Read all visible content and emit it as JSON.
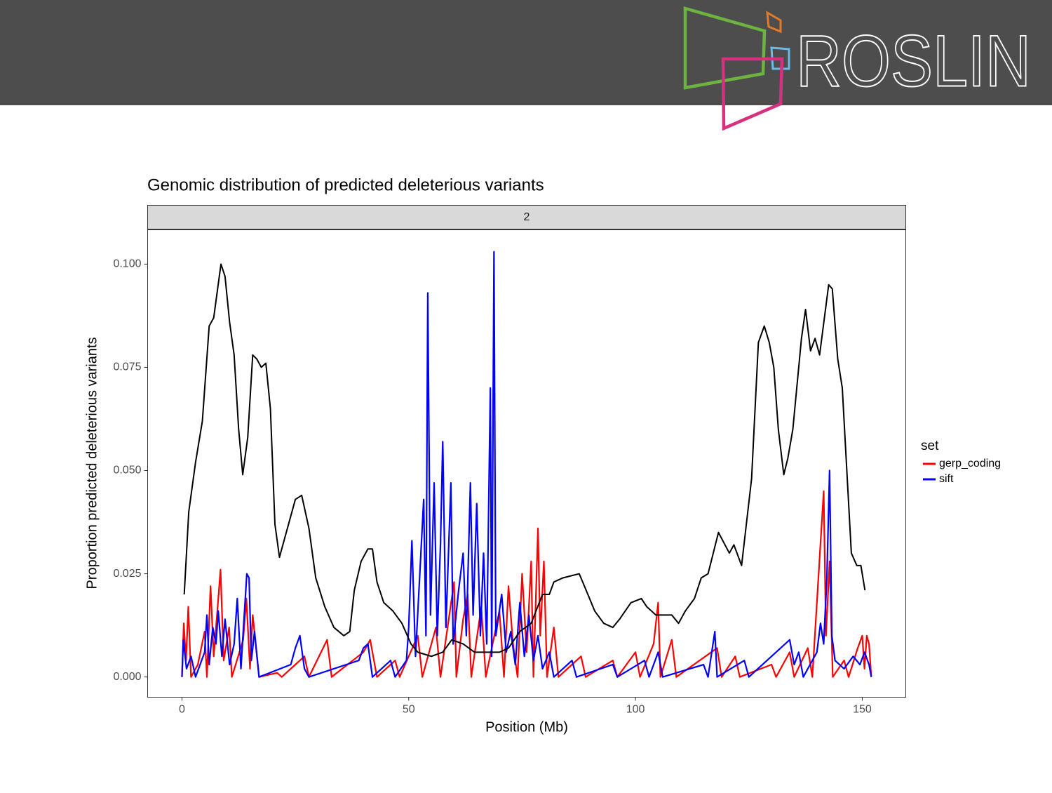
{
  "header": {
    "logo": "ROSLIN"
  },
  "chart_data": {
    "type": "line",
    "title": "Genomic distribution of predicted deleterious variants",
    "facet": "2",
    "x_label": "Position (Mb)",
    "y_label": "Proportion predicted deleterious variants",
    "legend_title": "set",
    "legend_position": "right",
    "xlim": [
      -7.57,
      159.6
    ],
    "ylim": [
      -0.0049,
      0.1083
    ],
    "xticks": [
      0,
      50,
      100,
      150
    ],
    "yticks": [
      {
        "value": 0,
        "label": "0.000"
      },
      {
        "value": 0.025,
        "label": "0.025"
      },
      {
        "value": 0.05,
        "label": "0.050"
      },
      {
        "value": 0.075,
        "label": "0.075"
      },
      {
        "value": 0.1,
        "label": "0.100"
      }
    ],
    "grid": false,
    "series": [
      {
        "name": "gerp_coding",
        "color": "#ff0000",
        "x": [
          0,
          0.4,
          0.9,
          1.4,
          2,
          3.5,
          5,
          5.5,
          6.3,
          7,
          7.8,
          8.5,
          9.2,
          10.4,
          11,
          13.5,
          14.2,
          15,
          15.6,
          17,
          21,
          22,
          27,
          28,
          32,
          33,
          40,
          41.5,
          43,
          47,
          48,
          52,
          53,
          56,
          57,
          60,
          60.5,
          62,
          63,
          63.8,
          66,
          67,
          70,
          71,
          72,
          73,
          74,
          75,
          76,
          77,
          77.5,
          78.5,
          79,
          79.8,
          80.5,
          82,
          83,
          88,
          89,
          95,
          96,
          100,
          101,
          104,
          105,
          105.5,
          108,
          109,
          118,
          119,
          122,
          123,
          130,
          131,
          134,
          135,
          138,
          139,
          141.5,
          142,
          142.8,
          143.5,
          146,
          147,
          149,
          150,
          150.5,
          151,
          151.5,
          152
        ],
        "values": [
          0,
          0.013,
          0.004,
          0.017,
          0,
          0.003,
          0.011,
          0,
          0.022,
          0.005,
          0.016,
          0.026,
          0.004,
          0.012,
          0,
          0.009,
          0.019,
          0.002,
          0.015,
          0,
          0.001,
          0,
          0.005,
          0,
          0.009,
          0,
          0.006,
          0.009,
          0,
          0.004,
          0,
          0.01,
          0,
          0.012,
          0,
          0.023,
          0,
          0.014,
          0.02,
          0,
          0.017,
          0,
          0.016,
          0,
          0.022,
          0.008,
          0,
          0.025,
          0.006,
          0.028,
          0,
          0.036,
          0.01,
          0.028,
          0,
          0.012,
          0,
          0.005,
          0,
          0.004,
          0,
          0.006,
          0,
          0.008,
          0.018,
          0,
          0.009,
          0,
          0.007,
          0,
          0.005,
          0,
          0.003,
          0,
          0.006,
          0,
          0.007,
          0,
          0.045,
          0.01,
          0.028,
          0,
          0.004,
          0,
          0.007,
          0.01,
          0.002,
          0.01,
          0.008,
          0
        ]
      },
      {
        "name": "sift",
        "color": "#0000ff",
        "x": [
          0,
          0.3,
          1,
          2,
          3,
          5,
          5.5,
          6,
          6.8,
          7.5,
          8,
          8.8,
          9.5,
          10.5,
          11.5,
          12.2,
          13,
          14.3,
          14.8,
          15.3,
          16,
          17,
          24,
          25,
          26,
          27,
          28,
          39,
          40,
          41,
          42,
          46,
          47,
          49.5,
          50,
          50.7,
          51.5,
          53.3,
          53.8,
          54.2,
          54.8,
          55.6,
          56.3,
          57,
          57.5,
          58.2,
          59.3,
          59.8,
          61,
          62,
          62.7,
          63.6,
          64.2,
          65,
          65.8,
          66.5,
          67.2,
          68,
          68.3,
          68.8,
          69.2,
          70.5,
          71.5,
          72.5,
          73.5,
          74.5,
          75.5,
          76.5,
          77.5,
          78.5,
          79.5,
          81,
          82,
          86,
          87,
          95,
          96,
          102,
          103,
          105,
          106,
          115,
          116,
          117.5,
          118,
          124,
          125,
          134,
          135,
          136,
          137,
          140,
          140.8,
          141.5,
          142.2,
          142.8,
          143.3,
          144,
          146,
          148,
          149.5,
          150.5,
          151.5,
          152
        ],
        "values": [
          0,
          0.009,
          0.002,
          0.005,
          0,
          0.006,
          0.015,
          0.003,
          0.012,
          0.008,
          0.016,
          0.005,
          0.014,
          0.003,
          0.008,
          0.019,
          0.002,
          0.025,
          0.024,
          0.004,
          0.011,
          0,
          0.003,
          0.007,
          0.01,
          0.002,
          0,
          0.004,
          0.007,
          0.008,
          0,
          0.004,
          0,
          0.004,
          0.012,
          0.033,
          0.005,
          0.043,
          0.01,
          0.093,
          0.015,
          0.047,
          0.01,
          0.032,
          0.057,
          0.012,
          0.047,
          0.008,
          0.021,
          0.03,
          0.01,
          0.047,
          0.015,
          0.042,
          0.01,
          0.03,
          0.008,
          0.07,
          0.005,
          0.103,
          0.01,
          0.02,
          0.006,
          0.011,
          0.003,
          0.018,
          0.005,
          0.015,
          0.004,
          0.01,
          0.002,
          0.006,
          0,
          0.004,
          0,
          0.003,
          0,
          0.004,
          0,
          0.006,
          0,
          0.003,
          0,
          0.011,
          0,
          0.004,
          0,
          0.009,
          0.003,
          0.006,
          0,
          0.006,
          0.013,
          0.008,
          0.024,
          0.05,
          0.01,
          0.004,
          0.002,
          0.005,
          0.003,
          0.006,
          0.003,
          0
        ]
      },
      {
        "color": "#000000",
        "x": [
          0.5,
          1.5,
          3,
          4.5,
          6,
          7,
          8.6,
          9.5,
          10.5,
          11.5,
          12.5,
          13.4,
          14.5,
          15.6,
          16.5,
          17.5,
          18.5,
          19.5,
          20.5,
          21.5,
          23,
          25,
          26.4,
          28,
          29.5,
          31.5,
          33.5,
          35.7,
          37,
          38,
          39.5,
          41,
          42,
          43,
          44.5,
          46.5,
          48.5,
          50.5,
          52,
          55,
          57.5,
          59.5,
          62,
          64.5,
          67,
          70,
          72,
          74.5,
          77,
          79.5,
          81,
          82,
          84,
          87.6,
          89.5,
          91,
          93,
          95,
          96.5,
          99,
          101.3,
          102.5,
          104.5,
          106,
          108,
          109.5,
          111,
          113,
          114.5,
          116,
          118.3,
          120.7,
          121.7,
          123.4,
          125.6,
          127.1,
          128.4,
          129.5,
          130.5,
          131.5,
          132.7,
          133.6,
          134.7,
          136.6,
          137.5,
          138.6,
          139.6,
          140.6,
          142.6,
          143.4,
          144.6,
          145.6,
          147.6,
          148.8,
          149.7,
          150.6
        ],
        "values": [
          0.02,
          0.04,
          0.052,
          0.062,
          0.085,
          0.087,
          0.1,
          0.097,
          0.086,
          0.078,
          0.06,
          0.049,
          0.058,
          0.078,
          0.077,
          0.075,
          0.076,
          0.065,
          0.037,
          0.029,
          0.035,
          0.043,
          0.044,
          0.036,
          0.024,
          0.017,
          0.012,
          0.01,
          0.011,
          0.021,
          0.028,
          0.031,
          0.031,
          0.023,
          0.018,
          0.016,
          0.013,
          0.008,
          0.006,
          0.005,
          0.006,
          0.009,
          0.008,
          0.006,
          0.006,
          0.006,
          0.007,
          0.011,
          0.013,
          0.02,
          0.02,
          0.023,
          0.024,
          0.025,
          0.02,
          0.016,
          0.013,
          0.012,
          0.014,
          0.018,
          0.019,
          0.017,
          0.015,
          0.015,
          0.015,
          0.013,
          0.016,
          0.019,
          0.024,
          0.025,
          0.035,
          0.03,
          0.032,
          0.027,
          0.048,
          0.081,
          0.085,
          0.081,
          0.075,
          0.06,
          0.049,
          0.053,
          0.06,
          0.082,
          0.089,
          0.079,
          0.082,
          0.078,
          0.095,
          0.094,
          0.077,
          0.07,
          0.03,
          0.027,
          0.027,
          0.021
        ]
      }
    ]
  }
}
